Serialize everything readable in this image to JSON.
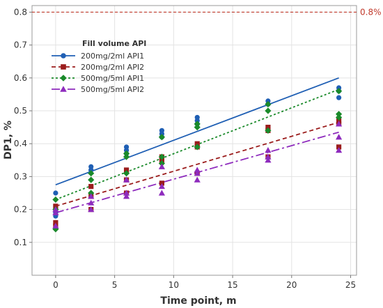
{
  "chart_data": {
    "type": "scatter",
    "xlabel": "Time point, m",
    "ylabel": "DP1, %",
    "xlim": [
      -2,
      25.5
    ],
    "ylim": [
      0,
      0.82
    ],
    "x_ticks": [
      0,
      5,
      10,
      15,
      20,
      25
    ],
    "y_ticks": [
      0.1,
      0.2,
      0.3,
      0.4,
      0.5,
      0.6,
      0.7,
      0.8
    ],
    "grid": true,
    "legend_title": "Fill volume    API",
    "legend_position": "top-left",
    "reference_line": {
      "y": 0.8,
      "label": "0.8%",
      "color": "#c0392b",
      "style": "dashed"
    },
    "series": [
      {
        "name": "200mg/2ml   API1",
        "color": "#1f5fb4",
        "marker": "circle",
        "dash": "",
        "fit": {
          "x0": 0,
          "y0": 0.275,
          "x1": 24,
          "y1": 0.6
        },
        "points": [
          [
            0,
            0.25
          ],
          [
            0,
            0.19
          ],
          [
            0,
            0.18
          ],
          [
            3,
            0.33
          ],
          [
            3,
            0.32
          ],
          [
            3,
            0.32
          ],
          [
            6,
            0.39
          ],
          [
            6,
            0.38
          ],
          [
            6,
            0.37
          ],
          [
            9,
            0.44
          ],
          [
            9,
            0.43
          ],
          [
            9,
            0.42
          ],
          [
            12,
            0.48
          ],
          [
            12,
            0.47
          ],
          [
            12,
            0.46
          ],
          [
            18,
            0.53
          ],
          [
            18,
            0.52
          ],
          [
            18,
            0.52
          ],
          [
            24,
            0.57
          ],
          [
            24,
            0.56
          ],
          [
            24,
            0.54
          ]
        ]
      },
      {
        "name": "200mg/2ml   API2",
        "color": "#9b1c1c",
        "marker": "square",
        "dash": "6,4",
        "fit": {
          "x0": 0,
          "y0": 0.21,
          "x1": 24,
          "y1": 0.465
        },
        "points": [
          [
            0,
            0.21
          ],
          [
            0,
            0.16
          ],
          [
            0,
            0.15
          ],
          [
            3,
            0.27
          ],
          [
            3,
            0.24
          ],
          [
            3,
            0.2
          ],
          [
            6,
            0.32
          ],
          [
            6,
            0.29
          ],
          [
            6,
            0.25
          ],
          [
            9,
            0.36
          ],
          [
            9,
            0.35
          ],
          [
            9,
            0.28
          ],
          [
            12,
            0.4
          ],
          [
            12,
            0.39
          ],
          [
            12,
            0.31
          ],
          [
            18,
            0.45
          ],
          [
            18,
            0.44
          ],
          [
            18,
            0.36
          ],
          [
            24,
            0.47
          ],
          [
            24,
            0.46
          ],
          [
            24,
            0.39
          ]
        ]
      },
      {
        "name": "500mg/5ml   API1",
        "color": "#1a8a2a",
        "marker": "diamond",
        "dash": "3,3",
        "fit": {
          "x0": 0,
          "y0": 0.23,
          "x1": 24,
          "y1": 0.565
        },
        "points": [
          [
            0,
            0.23
          ],
          [
            0,
            0.2
          ],
          [
            0,
            0.14
          ],
          [
            3,
            0.31
          ],
          [
            3,
            0.29
          ],
          [
            3,
            0.25
          ],
          [
            6,
            0.37
          ],
          [
            6,
            0.36
          ],
          [
            6,
            0.31
          ],
          [
            9,
            0.42
          ],
          [
            9,
            0.36
          ],
          [
            9,
            0.34
          ],
          [
            12,
            0.46
          ],
          [
            12,
            0.45
          ],
          [
            12,
            0.39
          ],
          [
            18,
            0.52
          ],
          [
            18,
            0.5
          ],
          [
            18,
            0.44
          ],
          [
            24,
            0.56
          ],
          [
            24,
            0.49
          ],
          [
            24,
            0.48
          ]
        ]
      },
      {
        "name": "500mg/5ml   API2",
        "color": "#8e2bbd",
        "marker": "triangle",
        "dash": "12,4,3,4",
        "fit": {
          "x0": 0,
          "y0": 0.19,
          "x1": 24,
          "y1": 0.435
        },
        "points": [
          [
            0,
            0.2
          ],
          [
            0,
            0.19
          ],
          [
            0,
            0.15
          ],
          [
            3,
            0.24
          ],
          [
            3,
            0.22
          ],
          [
            3,
            0.2
          ],
          [
            6,
            0.29
          ],
          [
            6,
            0.25
          ],
          [
            6,
            0.24
          ],
          [
            9,
            0.33
          ],
          [
            9,
            0.27
          ],
          [
            9,
            0.25
          ],
          [
            12,
            0.32
          ],
          [
            12,
            0.31
          ],
          [
            12,
            0.29
          ],
          [
            18,
            0.38
          ],
          [
            18,
            0.36
          ],
          [
            18,
            0.35
          ],
          [
            24,
            0.46
          ],
          [
            24,
            0.42
          ],
          [
            24,
            0.38
          ]
        ]
      }
    ]
  }
}
